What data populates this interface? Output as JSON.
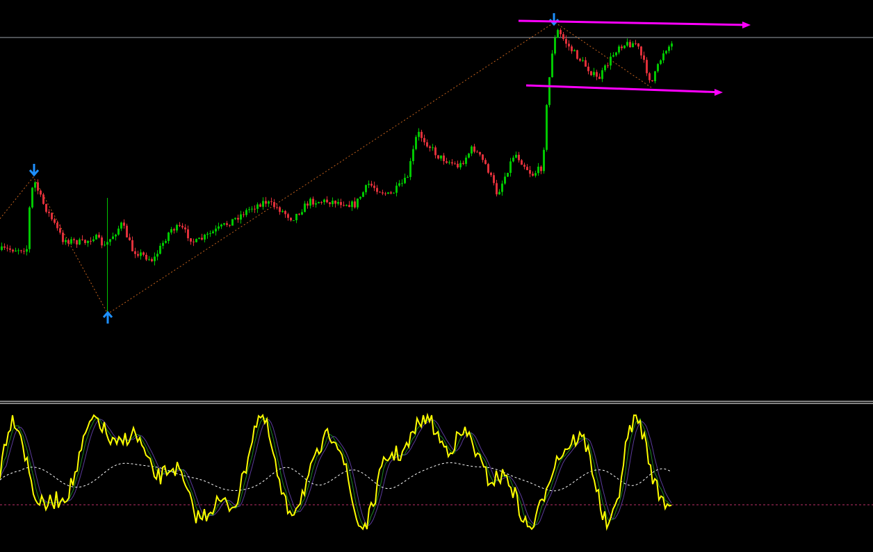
{
  "screen": {
    "chart_type": "candlestick",
    "background": "#000000",
    "up_color": "#00c800",
    "down_color": "#e0303a",
    "arrow_color": "#1e90ff",
    "channel_color": "#ff00ff",
    "oscillator_color": "#ffff00",
    "signal_color": "#ffffff",
    "fast_color": "#1f8a1f",
    "slow_color": "#5a3a9a",
    "zigzag_color": "#c8641e",
    "level_color": "#c0306a"
  }
}
